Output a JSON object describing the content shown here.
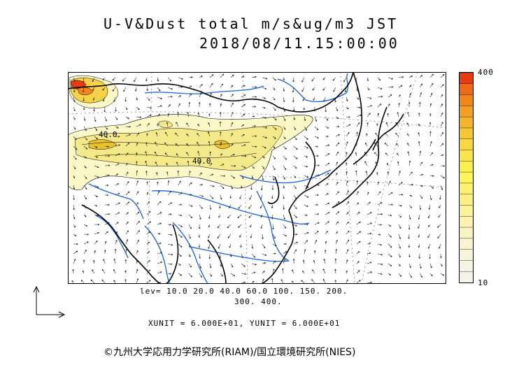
{
  "header": {
    "title_line1": "U-V&Dust total m/s&ug/m3 JST",
    "title_line2": "2018/08/11.15:00:00"
  },
  "map": {
    "contour_labels": [
      "40.0",
      "40.0"
    ],
    "colors": {
      "land": "#ffffff",
      "coast": "#000000",
      "river": "#1a5fe0",
      "dust_low": "#fbf7c6",
      "dust_mid": "#f3e98a",
      "dust_high": "#e8c030"
    }
  },
  "legend": {
    "max_label": "400",
    "min_label": "10",
    "colors": [
      "#e63c10",
      "#ef6a18",
      "#f2861c",
      "#f4a024",
      "#f6b42c",
      "#f8c834",
      "#fad840",
      "#fce44c",
      "#fdf04c",
      "#fef65a",
      "#fdf270",
      "#fcf084",
      "#fbf29a",
      "#faf2ae",
      "#f9f3c0",
      "#f8f4cf",
      "#f7f4da",
      "#f6f4e2",
      "#f6f4e8"
    ]
  },
  "footer": {
    "lev_line1": "lev= 10.0 20.0 40.0 60.0 100. 150. 200.",
    "lev_line2": "300. 400.",
    "units": "XUNIT = 6.000E+01, YUNIT = 6.000E+01",
    "copyright": "©九州大学応用力学研究所(RIAM)/国立環境研究所(NIES)"
  }
}
